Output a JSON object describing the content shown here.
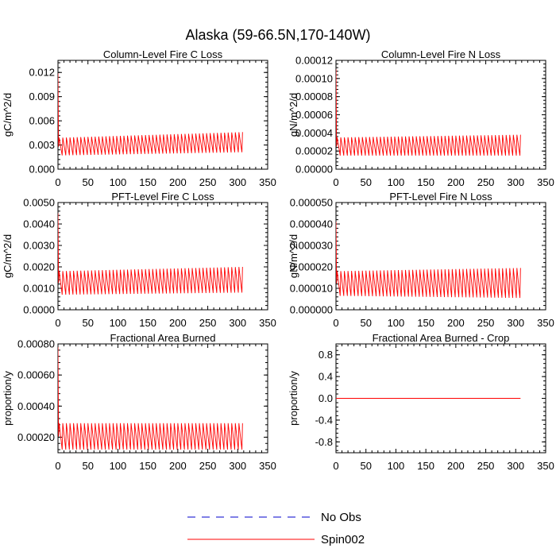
{
  "page_title": "Alaska (59-66.5N,170-140W)",
  "chart_data": [
    {
      "type": "line",
      "title": "Column-Level Fire C Loss",
      "ylabel": "gC/m^2/d",
      "xlabel": "",
      "xlim": [
        0,
        350
      ],
      "ylim": [
        0,
        0.0135
      ],
      "xticks": [
        0,
        50,
        100,
        150,
        200,
        250,
        300,
        350
      ],
      "xtick_labels": [
        "0",
        "50",
        "100",
        "150",
        "200",
        "250",
        "300",
        "350"
      ],
      "yticks": [
        0,
        0.003,
        0.006,
        0.009,
        0.012
      ],
      "ytick_labels": [
        "0.000",
        "0.003",
        "0.006",
        "0.009",
        "0.012"
      ],
      "series": [
        {
          "name": "Spin002",
          "color": "#ff0000",
          "n_years": 308,
          "period": 6,
          "spike": 0.0119,
          "low_start": 0.0017,
          "low_end": 0.0021,
          "high_start": 0.0039,
          "high_end": 0.0046
        }
      ]
    },
    {
      "type": "line",
      "title": "Column-Level Fire N Loss",
      "ylabel": "gN/m^2/d",
      "xlabel": "",
      "xlim": [
        0,
        350
      ],
      "ylim": [
        0,
        0.00012
      ],
      "xticks": [
        0,
        50,
        100,
        150,
        200,
        250,
        300,
        350
      ],
      "xtick_labels": [
        "0",
        "50",
        "100",
        "150",
        "200",
        "250",
        "300",
        "350"
      ],
      "yticks": [
        0,
        2e-05,
        4e-05,
        6e-05,
        8e-05,
        0.0001,
        0.00012
      ],
      "ytick_labels": [
        "0.00000",
        "0.00002",
        "0.00004",
        "0.00006",
        "0.00008",
        "0.00010",
        "0.00012"
      ],
      "series": [
        {
          "name": "Spin002",
          "color": "#ff0000",
          "n_years": 308,
          "period": 6,
          "spike": 0.00011,
          "low_start": 1.5e-05,
          "low_end": 1.5e-05,
          "high_start": 3.5e-05,
          "high_end": 3.8e-05
        }
      ]
    },
    {
      "type": "line",
      "title": "PFT-Level Fire C Loss",
      "ylabel": "gC/m^2/d",
      "xlabel": "",
      "xlim": [
        0,
        350
      ],
      "ylim": [
        0,
        0.005
      ],
      "xticks": [
        0,
        50,
        100,
        150,
        200,
        250,
        300,
        350
      ],
      "xtick_labels": [
        "0",
        "50",
        "100",
        "150",
        "200",
        "250",
        "300",
        "350"
      ],
      "yticks": [
        0,
        0.001,
        0.002,
        0.003,
        0.004,
        0.005
      ],
      "ytick_labels": [
        "0.0000",
        "0.0010",
        "0.0020",
        "0.0030",
        "0.0040",
        "0.0050"
      ],
      "series": [
        {
          "name": "Spin002",
          "color": "#ff0000",
          "n_years": 308,
          "period": 6,
          "spike": 0.0045,
          "low_start": 0.0007,
          "low_end": 0.0008,
          "high_start": 0.0018,
          "high_end": 0.002
        }
      ]
    },
    {
      "type": "line",
      "title": "PFT-Level Fire N Loss",
      "ylabel": "gN/m^2/d",
      "xlabel": "",
      "xlim": [
        0,
        350
      ],
      "ylim": [
        0,
        5e-05
      ],
      "xticks": [
        0,
        50,
        100,
        150,
        200,
        250,
        300,
        350
      ],
      "xtick_labels": [
        "0",
        "50",
        "100",
        "150",
        "200",
        "250",
        "300",
        "350"
      ],
      "yticks": [
        0,
        1e-05,
        2e-05,
        3e-05,
        4e-05,
        5e-05
      ],
      "ytick_labels": [
        "0.000000",
        "0.000010",
        "0.000020",
        "0.000030",
        "0.000040",
        "0.000050"
      ],
      "series": [
        {
          "name": "Spin002",
          "color": "#ff0000",
          "n_years": 308,
          "period": 6,
          "spike": 4.1e-05,
          "low_start": 6.5e-06,
          "low_end": 5.5e-06,
          "high_start": 1.8e-05,
          "high_end": 1.95e-05
        }
      ]
    },
    {
      "type": "line",
      "title": "Fractional Area Burned",
      "ylabel": "proportion/y",
      "xlabel": "",
      "xlim": [
        0,
        350
      ],
      "ylim": [
        0.0001,
        0.0008
      ],
      "xticks": [
        0,
        50,
        100,
        150,
        200,
        250,
        300,
        350
      ],
      "xtick_labels": [
        "0",
        "50",
        "100",
        "150",
        "200",
        "250",
        "300",
        "350"
      ],
      "yticks": [
        0.0002,
        0.0004,
        0.0006,
        0.0008
      ],
      "ytick_labels": [
        "0.00020",
        "0.00040",
        "0.00060",
        "0.00080"
      ],
      "series": [
        {
          "name": "Spin002",
          "color": "#ff0000",
          "n_years": 308,
          "period": 6,
          "spike": 0.00078,
          "low_start": 0.00012,
          "low_end": 0.00012,
          "high_start": 0.00029,
          "high_end": 0.00029
        }
      ]
    },
    {
      "type": "line",
      "title": "Fractional Area Burned - Crop",
      "ylabel": "proportion/y",
      "xlabel": "",
      "xlim": [
        0,
        350
      ],
      "ylim": [
        -1,
        1
      ],
      "xticks": [
        0,
        50,
        100,
        150,
        200,
        250,
        300,
        350
      ],
      "xtick_labels": [
        "0",
        "50",
        "100",
        "150",
        "200",
        "250",
        "300",
        "350"
      ],
      "yticks": [
        -0.8,
        -0.4,
        0,
        0.4,
        0.8
      ],
      "ytick_labels": [
        "-0.8",
        "-0.4",
        "0.0",
        "0.4",
        "0.8"
      ],
      "series": [
        {
          "name": "Spin002",
          "color": "#ff0000",
          "n_years": 308,
          "period": 6,
          "spike": 0,
          "low_start": 0,
          "low_end": 0,
          "high_start": 0,
          "high_end": 0
        }
      ]
    }
  ],
  "legend": {
    "entries": [
      {
        "label": "No Obs",
        "color": "#0000cc",
        "style": "dashed"
      },
      {
        "label": "Spin002",
        "color": "#ff0000",
        "style": "solid"
      }
    ]
  }
}
